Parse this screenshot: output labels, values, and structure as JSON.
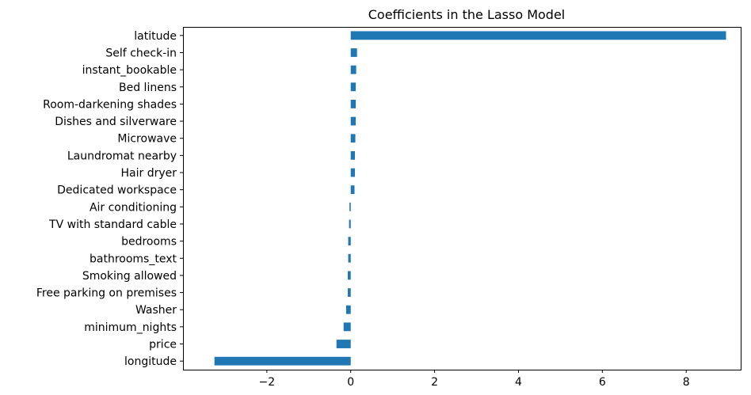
{
  "chart_data": {
    "type": "bar",
    "orientation": "horizontal",
    "title": "Coefficients in the Lasso Model",
    "xlabel": "",
    "ylabel": "",
    "categories": [
      "latitude",
      "Self check-in",
      "instant_bookable",
      "Bed linens",
      "Room-darkening shades",
      "Dishes and silverware",
      "Microwave",
      "Laundromat nearby",
      "Hair dryer",
      "Dedicated workspace",
      "Air conditioning",
      "TV with standard cable",
      "bedrooms",
      "bathrooms_text",
      "Smoking allowed",
      "Free parking on premises",
      "Washer",
      "minimum_nights",
      "price",
      "longitude"
    ],
    "values": [
      8.95,
      0.15,
      0.13,
      0.12,
      0.12,
      0.12,
      0.11,
      0.1,
      0.1,
      0.09,
      -0.03,
      -0.04,
      -0.06,
      -0.06,
      -0.07,
      -0.07,
      -0.11,
      -0.17,
      -0.34,
      -3.25
    ],
    "xlim": [
      -4.0,
      9.3
    ],
    "xticks": [
      -2,
      0,
      2,
      4,
      6,
      8
    ],
    "xtick_labels": [
      "−2",
      "0",
      "2",
      "4",
      "6",
      "8"
    ],
    "bar_color": "#1f77b4",
    "grid": false,
    "legend": "none"
  }
}
